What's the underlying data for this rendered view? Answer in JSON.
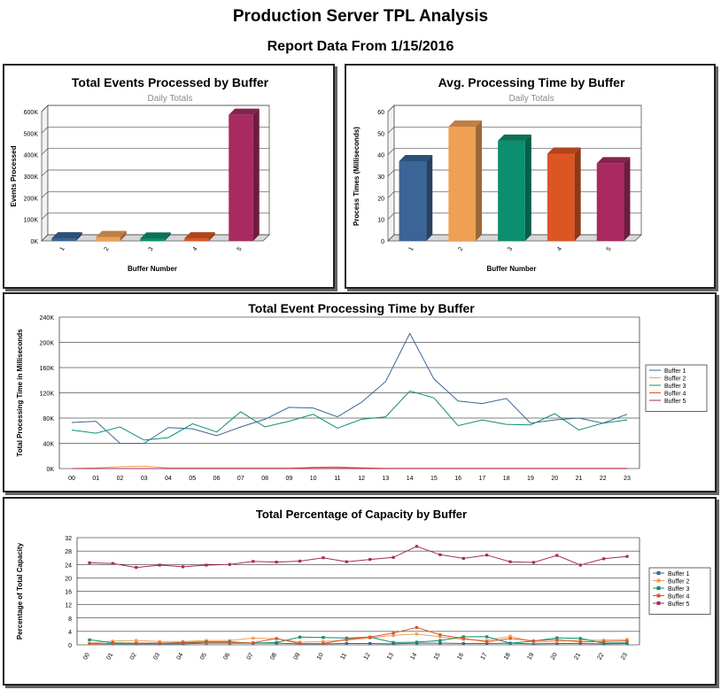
{
  "page": {
    "title": "Production Server TPL Analysis",
    "subtitle": "Report Data From 1/15/2016"
  },
  "chart_data": [
    {
      "type": "bar",
      "title": "Total Events Processed by Buffer",
      "subtitle": "Daily Totals",
      "xlabel": "Buffer Number",
      "ylabel": "Events Processed",
      "categories": [
        "1",
        "2",
        "3",
        "4",
        "5"
      ],
      "values": [
        12000,
        18000,
        11000,
        12000,
        585000
      ],
      "colors": [
        "#3a6596",
        "#f0a055",
        "#0b8f6e",
        "#de5524",
        "#a82a60"
      ],
      "ylim": [
        0,
        600000
      ],
      "yticks": [
        {
          "v": 0,
          "label": "0K"
        },
        {
          "v": 100000,
          "label": "100K"
        },
        {
          "v": 200000,
          "label": "200K"
        },
        {
          "v": 300000,
          "label": "300K"
        },
        {
          "v": 400000,
          "label": "400K"
        },
        {
          "v": 500000,
          "label": "500K"
        },
        {
          "v": 600000,
          "label": "600K"
        }
      ],
      "grid": true,
      "legend": "none"
    },
    {
      "type": "bar",
      "title": "Avg. Processing Time by Buffer",
      "subtitle": "Daily Totals",
      "xlabel": "Buffer Number",
      "ylabel": "Process Times (Milliseconds)",
      "categories": [
        "1",
        "2",
        "3",
        "4",
        "5"
      ],
      "values": [
        37,
        53,
        46.5,
        40.5,
        36
      ],
      "colors": [
        "#3a6596",
        "#f0a055",
        "#0b8f6e",
        "#de5524",
        "#a82a60"
      ],
      "ylim": [
        0,
        60
      ],
      "yticks": [
        {
          "v": 0,
          "label": "0"
        },
        {
          "v": 10,
          "label": "10"
        },
        {
          "v": 20,
          "label": "20"
        },
        {
          "v": 30,
          "label": "30"
        },
        {
          "v": 40,
          "label": "40"
        },
        {
          "v": 50,
          "label": "50"
        },
        {
          "v": 60,
          "label": "60"
        }
      ],
      "grid": true,
      "legend": "none"
    },
    {
      "type": "line",
      "title": "Total Event Processing Time by Buffer",
      "xlabel": "",
      "ylabel": "Total Processing Time in Milliseconds",
      "x": [
        "00",
        "01",
        "02",
        "03",
        "04",
        "05",
        "06",
        "07",
        "08",
        "09",
        "10",
        "11",
        "12",
        "13",
        "14",
        "15",
        "16",
        "17",
        "18",
        "19",
        "20",
        "21",
        "22",
        "23"
      ],
      "ylim": [
        0,
        240000
      ],
      "yticks": [
        {
          "v": 0,
          "label": "0K"
        },
        {
          "v": 40000,
          "label": "40K"
        },
        {
          "v": 80000,
          "label": "80K"
        },
        {
          "v": 120000,
          "label": "120K"
        },
        {
          "v": 160000,
          "label": "160K"
        },
        {
          "v": 200000,
          "label": "200K"
        },
        {
          "v": 240000,
          "label": "240K"
        }
      ],
      "grid": true,
      "legend": "right",
      "series": [
        {
          "name": "Buffer 1",
          "color": "#3a6596",
          "values": [
            73000,
            75000,
            40000,
            40000,
            65000,
            63000,
            52000,
            66000,
            78000,
            97000,
            96000,
            82000,
            105000,
            138000,
            214000,
            142000,
            107000,
            103000,
            111000,
            72000,
            77000,
            80000,
            72000,
            86000
          ]
        },
        {
          "name": "Buffer 2",
          "color": "#f0a055",
          "values": [
            0,
            1000,
            3000,
            4000,
            1000,
            1000,
            1000,
            1000,
            1000,
            1000,
            1500,
            1500,
            1000,
            500,
            500,
            500,
            500,
            500,
            500,
            500,
            500,
            500,
            500,
            500
          ]
        },
        {
          "name": "Buffer 3",
          "color": "#0b8f6e",
          "values": [
            61000,
            56000,
            66000,
            45000,
            49000,
            71000,
            58000,
            90000,
            66000,
            75000,
            86000,
            64000,
            78000,
            82000,
            123000,
            112000,
            68000,
            77000,
            70000,
            69000,
            87000,
            61000,
            72000,
            77000
          ]
        },
        {
          "name": "Buffer 4",
          "color": "#de5524",
          "values": [
            0,
            0,
            0,
            0,
            0,
            0,
            0,
            0,
            0,
            0,
            2000,
            2500,
            1000,
            0,
            0,
            0,
            0,
            0,
            0,
            0,
            0,
            0,
            0,
            0
          ]
        },
        {
          "name": "Buffer 5",
          "color": "#a82a60",
          "values": [
            0,
            0,
            0,
            0,
            0,
            0,
            0,
            0,
            0,
            0,
            0,
            0,
            0,
            0,
            0,
            0,
            0,
            0,
            0,
            0,
            0,
            0,
            0,
            0
          ]
        }
      ]
    },
    {
      "type": "line",
      "title": "Total Percentage of Capacity by Buffer",
      "xlabel": "",
      "ylabel": "Percentage of Total Capacity",
      "x": [
        "00",
        "01",
        "02",
        "03",
        "04",
        "05",
        "06",
        "07",
        "08",
        "09",
        "10",
        "11",
        "12",
        "13",
        "14",
        "15",
        "16",
        "17",
        "18",
        "19",
        "20",
        "21",
        "22",
        "23"
      ],
      "ylim": [
        0,
        32
      ],
      "yticks": [
        {
          "v": 0,
          "label": "0"
        },
        {
          "v": 4,
          "label": "4"
        },
        {
          "v": 8,
          "label": "8"
        },
        {
          "v": 12,
          "label": "12"
        },
        {
          "v": 16,
          "label": "16"
        },
        {
          "v": 20,
          "label": "20"
        },
        {
          "v": 24,
          "label": "24"
        },
        {
          "v": 28,
          "label": "28"
        },
        {
          "v": 32,
          "label": "32"
        }
      ],
      "grid": true,
      "legend": "right",
      "series": [
        {
          "name": "Buffer 1",
          "color": "#3a6596",
          "values": [
            0.4,
            0.3,
            0.3,
            0.3,
            0.3,
            0.5,
            0.5,
            0.5,
            0.5,
            0.3,
            0.3,
            0.4,
            0.4,
            0.3,
            0.5,
            0.5,
            0.4,
            0.4,
            0.5,
            0.3,
            0.4,
            0.4,
            0.3,
            0.4
          ]
        },
        {
          "name": "Buffer 2",
          "color": "#f0a055",
          "values": [
            0.5,
            1.1,
            1.3,
            1.0,
            1.0,
            1.3,
            1.3,
            2.0,
            1.8,
            0.8,
            1.0,
            1.4,
            2.0,
            2.8,
            3.2,
            2.4,
            1.6,
            1.3,
            2.6,
            0.8,
            1.0,
            1.4,
            1.4,
            1.6
          ]
        },
        {
          "name": "Buffer 3",
          "color": "#0b8f6e",
          "values": [
            1.5,
            0.6,
            0.5,
            0.5,
            0.7,
            0.9,
            0.9,
            0.5,
            0.7,
            2.3,
            2.2,
            2.0,
            2.3,
            0.7,
            0.8,
            1.3,
            2.4,
            2.4,
            0.5,
            1.1,
            2.1,
            1.9,
            0.5,
            0.6
          ]
        },
        {
          "name": "Buffer 4",
          "color": "#de5524",
          "values": [
            0.3,
            0.4,
            0.5,
            0.5,
            0.6,
            0.6,
            0.6,
            0.6,
            1.9,
            0.4,
            0.4,
            1.6,
            2.3,
            3.5,
            5.2,
            3.0,
            1.9,
            0.9,
            1.9,
            1.2,
            1.5,
            0.9,
            1.0,
            1.2
          ]
        },
        {
          "name": "Buffer 5",
          "color": "#a82a60",
          "values": [
            24.5,
            24.3,
            23.1,
            23.8,
            23.3,
            23.8,
            24.0,
            24.9,
            24.7,
            25.0,
            26.0,
            24.8,
            25.5,
            26.1,
            29.4,
            26.9,
            25.8,
            26.8,
            24.8,
            24.6,
            26.7,
            23.8,
            25.7,
            26.4
          ]
        }
      ]
    }
  ]
}
